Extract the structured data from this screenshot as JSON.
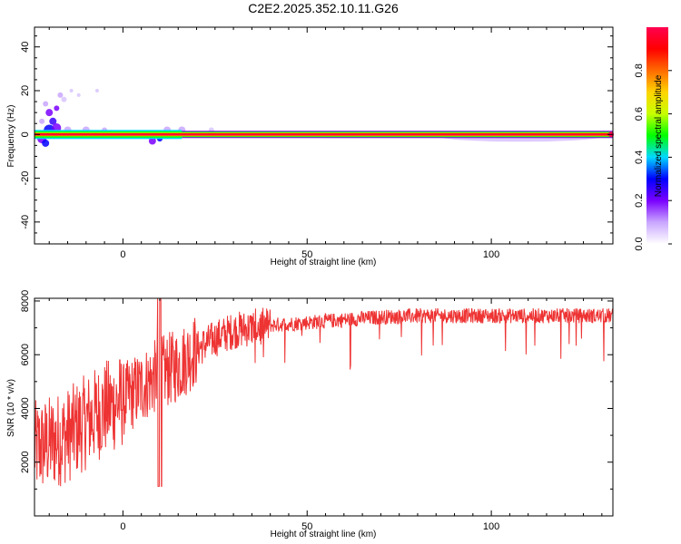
{
  "title": "C2E2.2025.352.10.11.G26",
  "chart_data": [
    {
      "type": "heatmap",
      "xlabel": "Height of straight line (km)",
      "ylabel": "Frequency (Hz)",
      "xlim": [
        -24,
        133
      ],
      "ylim": [
        -50,
        49
      ],
      "xticks": [
        0,
        50,
        100
      ],
      "yticks": [
        40,
        20,
        0,
        -20,
        -40
      ],
      "band_center_hz": 0,
      "colorbar": {
        "label": "Normalized spectral amplitude",
        "ticks": [
          0.0,
          0.2,
          0.4,
          0.6,
          0.8
        ],
        "range": [
          0,
          1
        ],
        "colors": [
          "#ffffff",
          "#c9a6ff",
          "#7a00ff",
          "#0000ff",
          "#00d8ff",
          "#00ff00",
          "#c8ff00",
          "#ffd400",
          "#ff6a00",
          "#ff0000",
          "#ff0050"
        ]
      }
    },
    {
      "type": "line",
      "xlabel": "Height of straight line (km)",
      "ylabel": "SNR (10 * v/v)",
      "xlim": [
        -24,
        133
      ],
      "ylim": [
        0,
        8100
      ],
      "xticks": [
        0,
        50,
        100
      ],
      "yticks": [
        2000,
        4000,
        6000,
        8000
      ],
      "color": "#ee3333",
      "envelope_x": [
        -24,
        -20,
        -15,
        -10,
        -5,
        0,
        5,
        10,
        15,
        20,
        25,
        30,
        40,
        50,
        60,
        70,
        80,
        90,
        100,
        110,
        120,
        133
      ],
      "envelope_y": [
        2500,
        2700,
        3000,
        3500,
        4000,
        4300,
        4800,
        5300,
        5600,
        6200,
        6600,
        6900,
        7100,
        7200,
        7300,
        7400,
        7450,
        7450,
        7450,
        7450,
        7450,
        7450
      ]
    }
  ]
}
